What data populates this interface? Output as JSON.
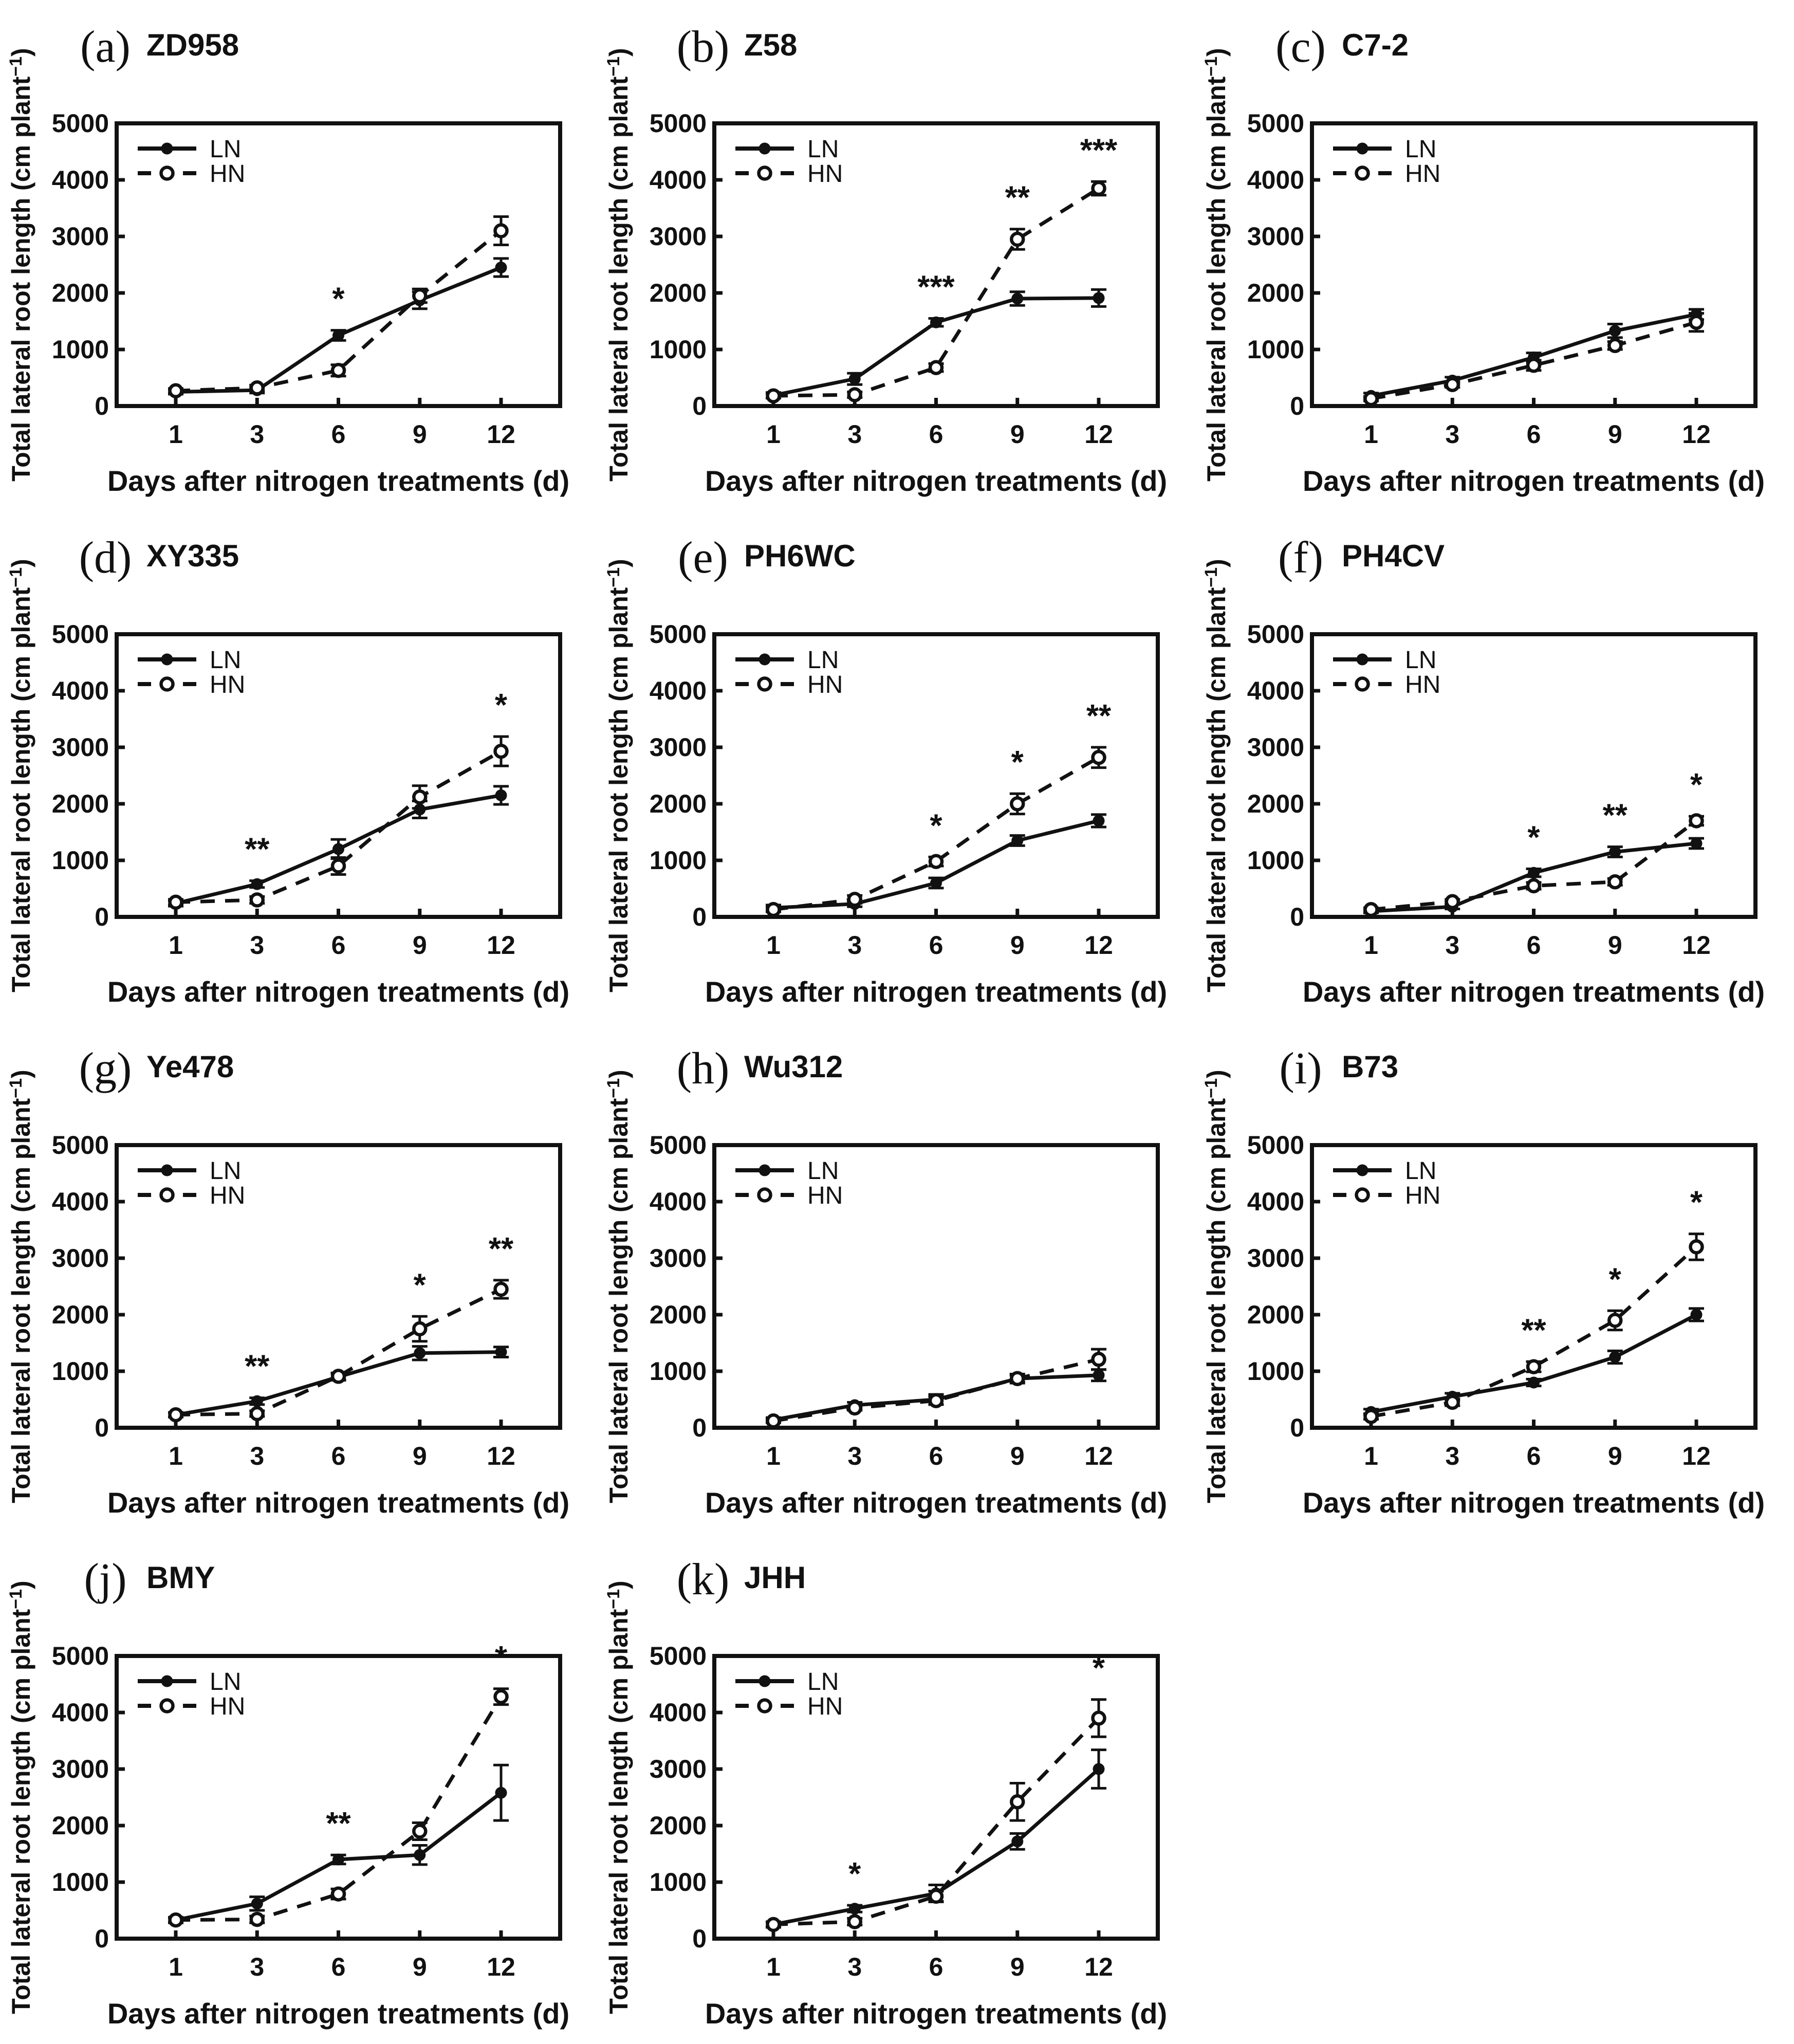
{
  "figure": {
    "background": "#ffffff",
    "ink_color": "#111111",
    "ylabel_prefix": "Total lateral root length (cm plant",
    "ylabel_superscript": "−1",
    "ylabel_suffix": ")",
    "xlabel": "Days after nitrogen treatments (d)",
    "legend": {
      "ln_label": "LN",
      "hn_label": "HN",
      "position": "top-left"
    },
    "x_categories": [
      1,
      3,
      6,
      9,
      12
    ],
    "ylim": [
      0,
      5000
    ],
    "yticks": [
      0,
      1000,
      2000,
      3000,
      4000,
      5000
    ],
    "grid": "off"
  },
  "chart_data": [
    {
      "type": "line",
      "panel_letter": "(a)",
      "title": "ZD958",
      "x": [
        1,
        3,
        6,
        9,
        12
      ],
      "series": [
        {
          "name": "LN",
          "line": "solid",
          "marker": "filled-circle",
          "values": [
            250,
            280,
            1250,
            1870,
            2450
          ],
          "errors": [
            40,
            50,
            90,
            150,
            160
          ]
        },
        {
          "name": "HN",
          "line": "dashed",
          "marker": "open-circle",
          "values": [
            270,
            320,
            630,
            1950,
            3100
          ],
          "errors": [
            40,
            50,
            100,
            120,
            250
          ]
        }
      ],
      "significance": [
        {
          "day": 6,
          "mark": "*"
        }
      ]
    },
    {
      "type": "line",
      "panel_letter": "(b)",
      "title": "Z58",
      "x": [
        1,
        3,
        6,
        9,
        12
      ],
      "series": [
        {
          "name": "LN",
          "line": "solid",
          "marker": "filled-circle",
          "values": [
            190,
            480,
            1480,
            1900,
            1910
          ],
          "errors": [
            50,
            100,
            70,
            120,
            150
          ]
        },
        {
          "name": "HN",
          "line": "dashed",
          "marker": "open-circle",
          "values": [
            180,
            200,
            680,
            2950,
            3850
          ],
          "errors": [
            40,
            50,
            70,
            180,
            120
          ]
        }
      ],
      "significance": [
        {
          "day": 6,
          "mark": "***"
        },
        {
          "day": 9,
          "mark": "**"
        },
        {
          "day": 12,
          "mark": "***"
        }
      ]
    },
    {
      "type": "line",
      "panel_letter": "(c)",
      "title": "C7-2",
      "x": [
        1,
        3,
        6,
        9,
        12
      ],
      "series": [
        {
          "name": "LN",
          "line": "solid",
          "marker": "filled-circle",
          "values": [
            180,
            450,
            860,
            1330,
            1620
          ],
          "errors": [
            50,
            60,
            80,
            120,
            90
          ]
        },
        {
          "name": "HN",
          "line": "dashed",
          "marker": "open-circle",
          "values": [
            130,
            380,
            720,
            1070,
            1480
          ],
          "errors": [
            40,
            50,
            90,
            70,
            160
          ]
        }
      ],
      "significance": []
    },
    {
      "type": "line",
      "panel_letter": "(d)",
      "title": "XY335",
      "x": [
        1,
        3,
        6,
        9,
        12
      ],
      "series": [
        {
          "name": "LN",
          "line": "solid",
          "marker": "filled-circle",
          "values": [
            240,
            580,
            1200,
            1900,
            2150
          ],
          "errors": [
            50,
            60,
            170,
            150,
            160
          ]
        },
        {
          "name": "HN",
          "line": "dashed",
          "marker": "open-circle",
          "values": [
            260,
            300,
            900,
            2120,
            2930
          ],
          "errors": [
            50,
            60,
            150,
            200,
            260
          ]
        }
      ],
      "significance": [
        {
          "day": 3,
          "mark": "**"
        },
        {
          "day": 12,
          "mark": "*"
        }
      ]
    },
    {
      "type": "line",
      "panel_letter": "(e)",
      "title": "PH6WC",
      "x": [
        1,
        3,
        6,
        9,
        12
      ],
      "series": [
        {
          "name": "LN",
          "line": "solid",
          "marker": "filled-circle",
          "values": [
            160,
            230,
            600,
            1350,
            1700
          ],
          "errors": [
            50,
            50,
            90,
            90,
            110
          ]
        },
        {
          "name": "HN",
          "line": "dashed",
          "marker": "open-circle",
          "values": [
            130,
            310,
            980,
            2000,
            2820
          ],
          "errors": [
            40,
            70,
            80,
            180,
            180
          ]
        }
      ],
      "significance": [
        {
          "day": 6,
          "mark": "*"
        },
        {
          "day": 9,
          "mark": "*"
        },
        {
          "day": 12,
          "mark": "**"
        }
      ]
    },
    {
      "type": "line",
      "panel_letter": "(f)",
      "title": "PH4CV",
      "x": [
        1,
        3,
        6,
        9,
        12
      ],
      "series": [
        {
          "name": "LN",
          "line": "solid",
          "marker": "filled-circle",
          "values": [
            100,
            180,
            780,
            1150,
            1300
          ],
          "errors": [
            30,
            40,
            70,
            90,
            90
          ]
        },
        {
          "name": "HN",
          "line": "dashed",
          "marker": "open-circle",
          "values": [
            130,
            270,
            550,
            620,
            1700
          ],
          "errors": [
            30,
            40,
            60,
            60,
            80
          ]
        }
      ],
      "significance": [
        {
          "day": 6,
          "mark": "*"
        },
        {
          "day": 9,
          "mark": "**"
        },
        {
          "day": 12,
          "mark": "*"
        }
      ]
    },
    {
      "type": "line",
      "panel_letter": "(g)",
      "title": "Ye478",
      "x": [
        1,
        3,
        6,
        9,
        12
      ],
      "series": [
        {
          "name": "LN",
          "line": "solid",
          "marker": "filled-circle",
          "values": [
            230,
            470,
            900,
            1320,
            1340
          ],
          "errors": [
            40,
            60,
            60,
            120,
            90
          ]
        },
        {
          "name": "HN",
          "line": "dashed",
          "marker": "open-circle",
          "values": [
            230,
            250,
            910,
            1750,
            2450
          ],
          "errors": [
            40,
            50,
            60,
            220,
            160
          ]
        }
      ],
      "significance": [
        {
          "day": 3,
          "mark": "**"
        },
        {
          "day": 9,
          "mark": "*"
        },
        {
          "day": 12,
          "mark": "**"
        }
      ]
    },
    {
      "type": "line",
      "panel_letter": "(h)",
      "title": "Wu312",
      "x": [
        1,
        3,
        6,
        9,
        12
      ],
      "series": [
        {
          "name": "LN",
          "line": "solid",
          "marker": "filled-circle",
          "values": [
            140,
            400,
            500,
            870,
            930
          ],
          "errors": [
            40,
            50,
            90,
            80,
            100
          ]
        },
        {
          "name": "HN",
          "line": "dashed",
          "marker": "open-circle",
          "values": [
            120,
            350,
            480,
            870,
            1210
          ],
          "errors": [
            30,
            40,
            70,
            60,
            180
          ]
        }
      ],
      "significance": []
    },
    {
      "type": "line",
      "panel_letter": "(i)",
      "title": "B73",
      "x": [
        1,
        3,
        6,
        9,
        12
      ],
      "series": [
        {
          "name": "LN",
          "line": "solid",
          "marker": "filled-circle",
          "values": [
            280,
            550,
            800,
            1250,
            2000
          ],
          "errors": [
            50,
            60,
            60,
            110,
            110
          ]
        },
        {
          "name": "HN",
          "line": "dashed",
          "marker": "open-circle",
          "values": [
            200,
            450,
            1080,
            1900,
            3200
          ],
          "errors": [
            50,
            60,
            90,
            170,
            230
          ]
        }
      ],
      "significance": [
        {
          "day": 6,
          "mark": "**"
        },
        {
          "day": 9,
          "mark": "*"
        },
        {
          "day": 12,
          "mark": "*"
        }
      ]
    },
    {
      "type": "line",
      "panel_letter": "(j)",
      "title": "BMY",
      "x": [
        1,
        3,
        6,
        9,
        12
      ],
      "series": [
        {
          "name": "LN",
          "line": "solid",
          "marker": "filled-circle",
          "values": [
            330,
            620,
            1400,
            1480,
            2580
          ],
          "errors": [
            50,
            120,
            80,
            170,
            490
          ]
        },
        {
          "name": "HN",
          "line": "dashed",
          "marker": "open-circle",
          "values": [
            330,
            340,
            790,
            1900,
            4280
          ],
          "errors": [
            40,
            60,
            90,
            150,
            140
          ]
        }
      ],
      "significance": [
        {
          "day": 6,
          "mark": "**"
        },
        {
          "day": 12,
          "mark": "*"
        }
      ]
    },
    {
      "type": "line",
      "panel_letter": "(k)",
      "title": "JHH",
      "x": [
        1,
        3,
        6,
        9,
        12
      ],
      "series": [
        {
          "name": "LN",
          "line": "solid",
          "marker": "filled-circle",
          "values": [
            250,
            530,
            800,
            1720,
            3000
          ],
          "errors": [
            50,
            60,
            150,
            140,
            340
          ]
        },
        {
          "name": "HN",
          "line": "dashed",
          "marker": "open-circle",
          "values": [
            250,
            300,
            750,
            2420,
            3900
          ],
          "errors": [
            40,
            60,
            90,
            330,
            330
          ]
        }
      ],
      "significance": [
        {
          "day": 3,
          "mark": "*"
        },
        {
          "day": 12,
          "mark": "*"
        }
      ]
    }
  ]
}
